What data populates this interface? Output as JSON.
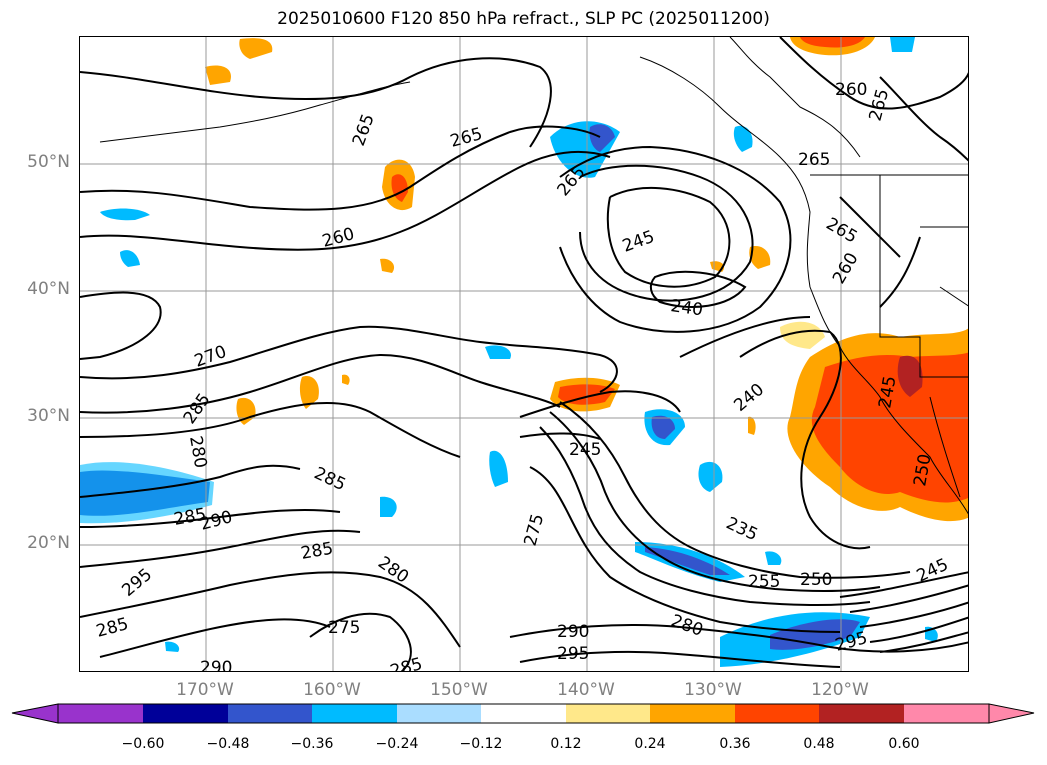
{
  "title": "2025010600 F120 850 hPa refract., SLP PC (2025011200)",
  "lat_labels": [
    "50°N",
    "40°N",
    "30°N",
    "20°N"
  ],
  "lon_labels": [
    "170°W",
    "160°W",
    "150°W",
    "140°W",
    "130°W",
    "120°W"
  ],
  "colorbar": {
    "ticks": [
      "−0.60",
      "−0.48",
      "−0.36",
      "−0.24",
      "−0.12",
      "0.12",
      "0.24",
      "0.36",
      "0.48",
      "0.60"
    ],
    "colors": [
      "#9933cc",
      "#000099",
      "#3355cc",
      "#00bbff",
      "#aaddff",
      "#ffffff",
      "#ffe88a",
      "#ffa500",
      "#ff4400",
      "#b22222",
      "#ff88aa"
    ]
  },
  "contour_labels": [
    {
      "text": "265"
    },
    {
      "text": "265"
    },
    {
      "text": "265"
    },
    {
      "text": "260"
    },
    {
      "text": "265"
    },
    {
      "text": "265"
    },
    {
      "text": "260"
    },
    {
      "text": "245"
    },
    {
      "text": "240"
    },
    {
      "text": "265"
    },
    {
      "text": "260"
    },
    {
      "text": "270"
    },
    {
      "text": "285"
    },
    {
      "text": "280"
    },
    {
      "text": "240"
    },
    {
      "text": "245"
    },
    {
      "text": "285"
    },
    {
      "text": "285"
    },
    {
      "text": "290"
    },
    {
      "text": "285"
    },
    {
      "text": "275"
    },
    {
      "text": "280"
    },
    {
      "text": "295"
    },
    {
      "text": "235"
    },
    {
      "text": "255"
    },
    {
      "text": "250"
    },
    {
      "text": "245"
    },
    {
      "text": "285"
    },
    {
      "text": "275"
    },
    {
      "text": "290"
    },
    {
      "text": "280"
    },
    {
      "text": "295"
    },
    {
      "text": "295"
    },
    {
      "text": "290"
    },
    {
      "text": "285"
    },
    {
      "text": "245"
    },
    {
      "text": "250"
    }
  ]
}
